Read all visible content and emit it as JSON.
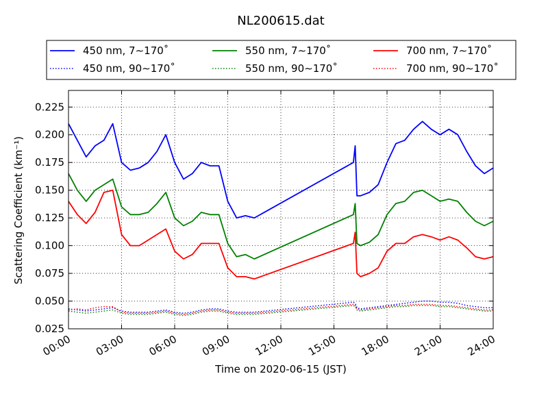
{
  "chart_data": {
    "type": "line",
    "title": "NL200615.dat",
    "xlabel": "Time on 2020-06-15 (JST)",
    "ylabel": "Scattering Coefficient (km⁻¹)",
    "xlim": [
      0,
      24
    ],
    "ylim": [
      0.025,
      0.24
    ],
    "grid": true,
    "legend_position": "top",
    "x_tick_labels": [
      "00:00",
      "03:00",
      "06:00",
      "09:00",
      "12:00",
      "15:00",
      "18:00",
      "21:00",
      "24:00"
    ],
    "x_ticks": [
      0,
      3,
      6,
      9,
      12,
      15,
      18,
      21,
      24
    ],
    "y_tick_labels": [
      "0.025",
      "0.050",
      "0.075",
      "0.100",
      "0.125",
      "0.150",
      "0.175",
      "0.200",
      "0.225"
    ],
    "y_ticks": [
      0.025,
      0.05,
      0.075,
      0.1,
      0.125,
      0.15,
      0.175,
      0.2,
      0.225
    ],
    "x": [
      0,
      0.5,
      1,
      1.5,
      2,
      2.5,
      3,
      3.5,
      4,
      4.5,
      5,
      5.5,
      6,
      6.5,
      7,
      7.5,
      8,
      8.5,
      9,
      9.5,
      10,
      10.5,
      16.1,
      16.2,
      16.3,
      16.5,
      17,
      17.5,
      18,
      18.5,
      19,
      19.5,
      20,
      20.5,
      21,
      21.5,
      22,
      22.5,
      23,
      23.5,
      24
    ],
    "series": [
      {
        "name": "450 nm, 7∼170˚",
        "color": "#0000ff",
        "style": "solid",
        "values": [
          0.21,
          0.195,
          0.18,
          0.19,
          0.195,
          0.21,
          0.175,
          0.168,
          0.17,
          0.175,
          0.185,
          0.2,
          0.175,
          0.16,
          0.165,
          0.175,
          0.172,
          0.172,
          0.14,
          0.125,
          0.127,
          0.125,
          0.175,
          0.19,
          0.145,
          0.145,
          0.148,
          0.155,
          0.175,
          0.192,
          0.195,
          0.205,
          0.212,
          0.205,
          0.2,
          0.205,
          0.2,
          0.185,
          0.172,
          0.165,
          0.17
        ]
      },
      {
        "name": "550 nm, 7∼170˚",
        "color": "#008000",
        "style": "solid",
        "values": [
          0.165,
          0.15,
          0.14,
          0.15,
          0.155,
          0.16,
          0.135,
          0.128,
          0.128,
          0.13,
          0.138,
          0.148,
          0.125,
          0.118,
          0.122,
          0.13,
          0.128,
          0.128,
          0.102,
          0.09,
          0.092,
          0.088,
          0.128,
          0.138,
          0.102,
          0.1,
          0.103,
          0.11,
          0.128,
          0.138,
          0.14,
          0.148,
          0.15,
          0.145,
          0.14,
          0.142,
          0.14,
          0.13,
          0.122,
          0.118,
          0.122
        ]
      },
      {
        "name": "700 nm, 7∼170˚",
        "color": "#ff0000",
        "style": "solid",
        "values": [
          0.14,
          0.128,
          0.12,
          0.13,
          0.148,
          0.15,
          0.11,
          0.1,
          0.1,
          0.105,
          0.11,
          0.115,
          0.095,
          0.088,
          0.092,
          0.102,
          0.102,
          0.102,
          0.08,
          0.072,
          0.072,
          0.07,
          0.102,
          0.112,
          0.075,
          0.072,
          0.075,
          0.08,
          0.095,
          0.102,
          0.102,
          0.108,
          0.11,
          0.108,
          0.105,
          0.108,
          0.105,
          0.098,
          0.09,
          0.088,
          0.09
        ]
      },
      {
        "name": "450 nm, 90∼170˚",
        "color": "#0000ff",
        "style": "dotted",
        "values": [
          0.043,
          0.042,
          0.041,
          0.042,
          0.043,
          0.044,
          0.041,
          0.04,
          0.04,
          0.04,
          0.041,
          0.042,
          0.04,
          0.039,
          0.04,
          0.042,
          0.043,
          0.043,
          0.041,
          0.04,
          0.04,
          0.04,
          0.049,
          0.048,
          0.044,
          0.043,
          0.044,
          0.045,
          0.046,
          0.047,
          0.048,
          0.049,
          0.05,
          0.05,
          0.049,
          0.049,
          0.048,
          0.046,
          0.045,
          0.044,
          0.044
        ]
      },
      {
        "name": "550 nm, 90∼170˚",
        "color": "#008000",
        "style": "dotted",
        "values": [
          0.041,
          0.04,
          0.039,
          0.04,
          0.041,
          0.042,
          0.039,
          0.038,
          0.038,
          0.038,
          0.039,
          0.04,
          0.038,
          0.037,
          0.038,
          0.04,
          0.041,
          0.041,
          0.039,
          0.038,
          0.038,
          0.038,
          0.046,
          0.045,
          0.042,
          0.041,
          0.042,
          0.043,
          0.044,
          0.045,
          0.045,
          0.046,
          0.046,
          0.046,
          0.045,
          0.045,
          0.044,
          0.043,
          0.042,
          0.041,
          0.041
        ]
      },
      {
        "name": "700 nm, 90∼170˚",
        "color": "#ff0000",
        "style": "dotted",
        "values": [
          0.042,
          0.043,
          0.042,
          0.044,
          0.045,
          0.045,
          0.04,
          0.039,
          0.039,
          0.039,
          0.04,
          0.041,
          0.039,
          0.038,
          0.039,
          0.041,
          0.042,
          0.042,
          0.04,
          0.039,
          0.039,
          0.039,
          0.047,
          0.046,
          0.043,
          0.042,
          0.043,
          0.044,
          0.045,
          0.046,
          0.046,
          0.047,
          0.047,
          0.047,
          0.046,
          0.046,
          0.045,
          0.044,
          0.043,
          0.042,
          0.042
        ]
      }
    ],
    "legend_order": [
      0,
      1,
      2,
      3,
      4,
      5
    ]
  }
}
